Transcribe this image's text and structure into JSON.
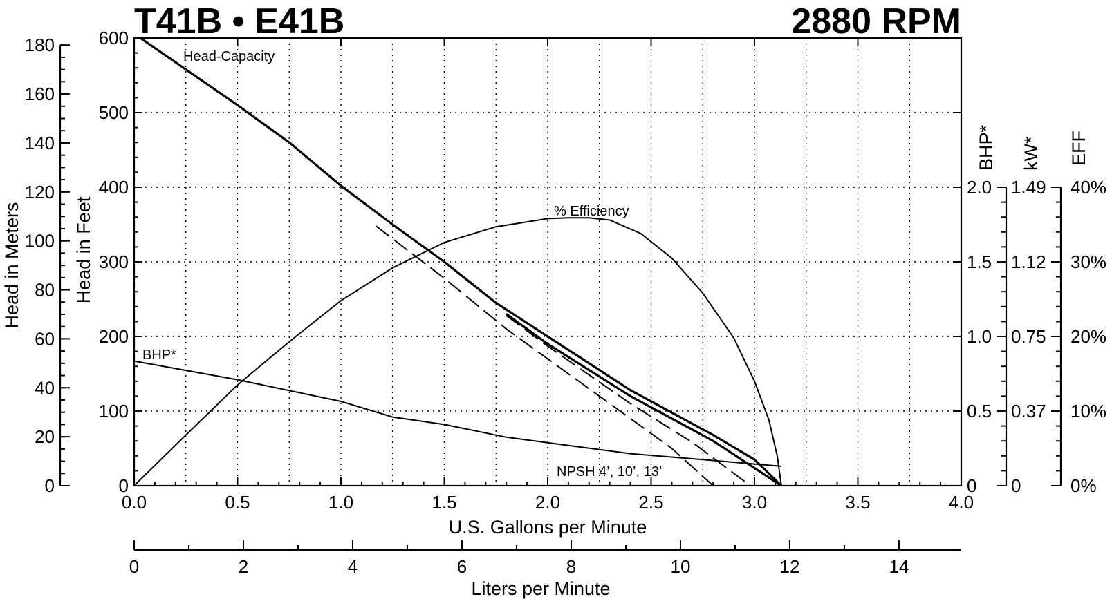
{
  "chart_data": {
    "type": "line",
    "title_left": "T41B • E41B",
    "title_right": "2880 RPM",
    "xlabel": "U.S. Gallons per Minute",
    "xlim": [
      0,
      4
    ],
    "xticks": [
      "0.0",
      "0.5",
      "1.0",
      "1.5",
      "2.0",
      "2.5",
      "3.0",
      "3.5",
      "4.0"
    ],
    "x2label": "Liters per Minute",
    "x2lim": [
      0,
      15.14
    ],
    "x2ticks": [
      "0",
      "2",
      "4",
      "6",
      "8",
      "10",
      "12",
      "14"
    ],
    "ylabel_feet": "Head in Feet",
    "ylim_feet": [
      0,
      600
    ],
    "yticks_feet": [
      "0",
      "100",
      "200",
      "300",
      "400",
      "500",
      "600"
    ],
    "ylabel_meters": "Head in Meters",
    "ylim_meters": [
      0,
      182.9
    ],
    "yticks_meters": [
      "0",
      "20",
      "40",
      "60",
      "80",
      "100",
      "120",
      "140",
      "160",
      "180"
    ],
    "ylabel_bhp": "BHP*",
    "yticks_bhp": [
      "0",
      "0.5",
      "1.0",
      "1.5",
      "2.0"
    ],
    "ylabel_kw": "kW*",
    "yticks_kw": [
      "0",
      "0.37",
      "0.75",
      "1.12",
      "1.49"
    ],
    "ylabel_eff": "EFF",
    "yticks_eff": [
      "0%",
      "10%",
      "20%",
      "30%",
      "40%"
    ],
    "grid": true,
    "series": [
      {
        "name": "Head-Capacity",
        "axis": "feet",
        "x": [
          0.03,
          0.5,
          0.75,
          1.0,
          1.25,
          1.5,
          1.75,
          2.0,
          2.25,
          2.4,
          2.6,
          2.8,
          3.0,
          3.13
        ],
        "y": [
          600,
          510,
          460,
          402,
          350,
          300,
          245,
          200,
          155,
          128,
          98,
          68,
          35,
          0
        ]
      },
      {
        "name": "% Efficiency",
        "axis": "eff",
        "x": [
          0.0,
          0.25,
          0.5,
          0.75,
          1.0,
          1.25,
          1.5,
          1.75,
          2.0,
          2.1,
          2.2,
          2.3,
          2.45,
          2.6,
          2.75,
          2.9,
          3.0,
          3.07,
          3.11,
          3.13
        ],
        "y": [
          0,
          6.8,
          13.5,
          19.3,
          24.8,
          29.2,
          32.6,
          34.7,
          35.8,
          35.9,
          35.9,
          35.6,
          33.8,
          30.5,
          25.8,
          19.8,
          14.0,
          8.8,
          4.0,
          0
        ]
      },
      {
        "name": "BHP*",
        "axis": "bhp",
        "x": [
          0.0,
          0.5,
          1.0,
          1.25,
          1.5,
          1.8,
          2.1,
          2.4,
          2.75,
          3.13
        ],
        "y": [
          0.835,
          0.71,
          0.565,
          0.46,
          0.41,
          0.325,
          0.27,
          0.215,
          0.175,
          0.13
        ]
      },
      {
        "name": "NPSH 4'",
        "axis": "feet",
        "x": [
          1.8,
          2.0,
          2.4,
          2.8,
          3.13
        ],
        "y": [
          230,
          190,
          120,
          60,
          0
        ]
      },
      {
        "name": "NPSH 10'",
        "axis": "feet",
        "x": [
          1.8,
          2.0,
          2.4,
          2.7,
          2.98
        ],
        "y": [
          228,
          187,
          110,
          58,
          0
        ]
      },
      {
        "name": "NPSH 13'",
        "axis": "feet",
        "x": [
          1.17,
          1.5,
          1.8,
          2.1,
          2.4,
          2.6,
          2.8
        ],
        "y": [
          348,
          278,
          210,
          150,
          90,
          50,
          0
        ]
      }
    ],
    "annotations": {
      "head_capacity": "Head-Capacity",
      "efficiency": "% Efficiency",
      "bhp": "BHP*",
      "npsh": "NPSH 4’, 10’, 13’"
    },
    "colors": {
      "line": "#000000",
      "background": "#ffffff"
    }
  }
}
